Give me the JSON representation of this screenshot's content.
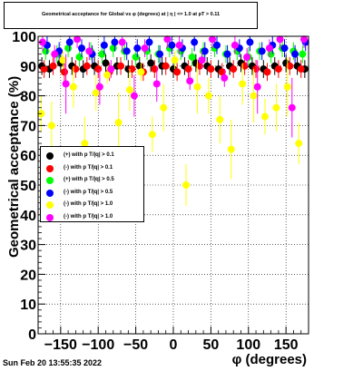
{
  "chart_data": {
    "type": "scatter",
    "title": "Geometrical acceptance for Global vs φ (degrees) at | η | <= 1.0 at pT > 0.11",
    "xlabel": "φ (degrees)",
    "ylabel": "Geometrical acceptance (%)",
    "xlim": [
      -180,
      180
    ],
    "ylim": [
      0,
      100
    ],
    "xticks": [
      -150,
      -100,
      -50,
      0,
      50,
      100,
      150
    ],
    "yticks": [
      0,
      10,
      20,
      30,
      40,
      50,
      60,
      70,
      80,
      90,
      100
    ],
    "grid": true,
    "legend_position": "middle-left",
    "series": [
      {
        "name": "(+) with p T/|q| > 0.1",
        "color": "#000000",
        "x": [
          -175,
          -165,
          -150,
          -135,
          -120,
          -105,
          -90,
          -75,
          -60,
          -45,
          -30,
          -15,
          0,
          15,
          30,
          45,
          60,
          75,
          90,
          105,
          120,
          135,
          150,
          165,
          175
        ],
        "y": [
          90,
          89,
          91,
          90,
          89,
          90,
          91,
          90,
          89,
          90,
          91,
          90,
          89,
          90,
          91,
          90,
          89,
          90,
          91,
          90,
          89,
          90,
          91,
          90,
          89
        ]
      },
      {
        "name": "(-) with p T/|q| > 0.1",
        "color": "#ff0000",
        "x": [
          -172,
          -160,
          -145,
          -130,
          -115,
          -100,
          -85,
          -70,
          -55,
          -40,
          -25,
          -10,
          5,
          20,
          35,
          50,
          65,
          80,
          95,
          110,
          125,
          140,
          155,
          170
        ],
        "y": [
          89,
          90,
          88,
          89,
          90,
          89,
          88,
          90,
          89,
          88,
          89,
          90,
          88,
          89,
          90,
          89,
          88,
          89,
          90,
          89,
          88,
          89,
          90,
          89
        ]
      },
      {
        "name": "(+) with p T/|q| > 0.5",
        "color": "#00ff00",
        "x": [
          -170,
          -155,
          -140,
          -125,
          -110,
          -95,
          -80,
          -65,
          -50,
          -35,
          -20,
          -5,
          10,
          25,
          40,
          55,
          70,
          85,
          100,
          115,
          130,
          145,
          160,
          172
        ],
        "y": [
          95,
          94,
          96,
          93,
          95,
          94,
          96,
          95,
          93,
          95,
          94,
          96,
          95,
          93,
          95,
          96,
          94,
          95,
          93,
          95,
          94,
          96,
          95,
          94
        ]
      },
      {
        "name": "(-) with p T/|q| > 0.5",
        "color": "#0000ff",
        "x": [
          -168,
          -152,
          -138,
          -122,
          -108,
          -92,
          -78,
          -62,
          -48,
          -32,
          -18,
          -2,
          12,
          28,
          42,
          58,
          72,
          88,
          102,
          118,
          132,
          148,
          162,
          176
        ],
        "y": [
          97,
          95,
          98,
          96,
          94,
          97,
          98,
          95,
          96,
          98,
          94,
          97,
          96,
          98,
          95,
          97,
          94,
          96,
          98,
          95,
          97,
          96,
          94,
          98
        ]
      },
      {
        "name": "(-) with p T/|q| > 1.0",
        "color": "#ffff00",
        "x": [
          -176,
          -162,
          -147,
          -133,
          -118,
          -103,
          -88,
          -73,
          -58,
          -43,
          -28,
          -13,
          2,
          17,
          32,
          47,
          62,
          77,
          92,
          107,
          122,
          137,
          152,
          167
        ],
        "y": [
          74,
          70,
          92,
          83,
          64,
          81,
          87,
          71,
          82,
          88,
          67,
          76,
          92,
          50,
          83,
          80,
          72,
          62,
          84,
          80,
          73,
          76,
          83,
          64
        ]
      },
      {
        "name": "(-) with p T/|q| > 1.0",
        "color": "#ff00ff",
        "x": [
          -174,
          -158,
          -143,
          -128,
          -112,
          -98,
          -83,
          -68,
          -52,
          -38,
          -22,
          -8,
          8,
          22,
          38,
          52,
          68,
          82,
          98,
          112,
          128,
          142,
          158,
          174
        ],
        "y": [
          98,
          94,
          84,
          99,
          95,
          83,
          89,
          98,
          80,
          96,
          84,
          99,
          97,
          85,
          92,
          99,
          86,
          97,
          93,
          83,
          96,
          99,
          76,
          99
        ]
      }
    ]
  },
  "timestamp": "Sun Feb 20 13:55:35 2022"
}
